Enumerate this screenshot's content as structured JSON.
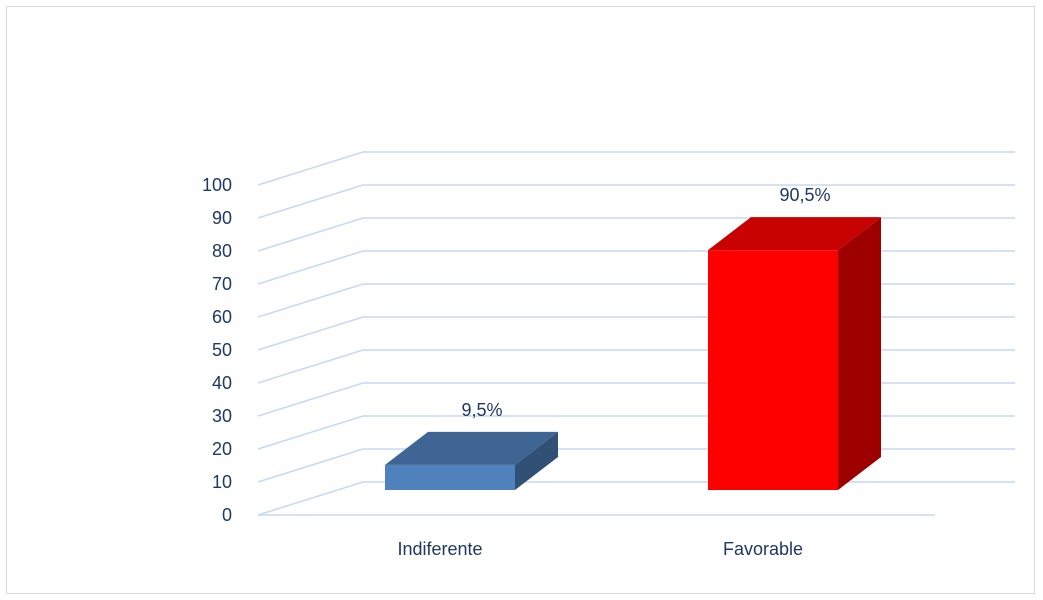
{
  "chart_data": {
    "type": "bar",
    "categories": [
      "Indiferente",
      "Favorable"
    ],
    "values": [
      9.5,
      90.5
    ],
    "data_labels": [
      "9,5%",
      "90,5%"
    ],
    "ylim": [
      0,
      100
    ],
    "yticks": [
      "0",
      "10",
      "20",
      "30",
      "40",
      "50",
      "60",
      "70",
      "80",
      "90",
      "100"
    ],
    "title": "",
    "xlabel": "",
    "ylabel": "",
    "grid": true,
    "bar_colors": [
      "#4f81bd",
      "#ff0000"
    ],
    "legend": "none"
  }
}
